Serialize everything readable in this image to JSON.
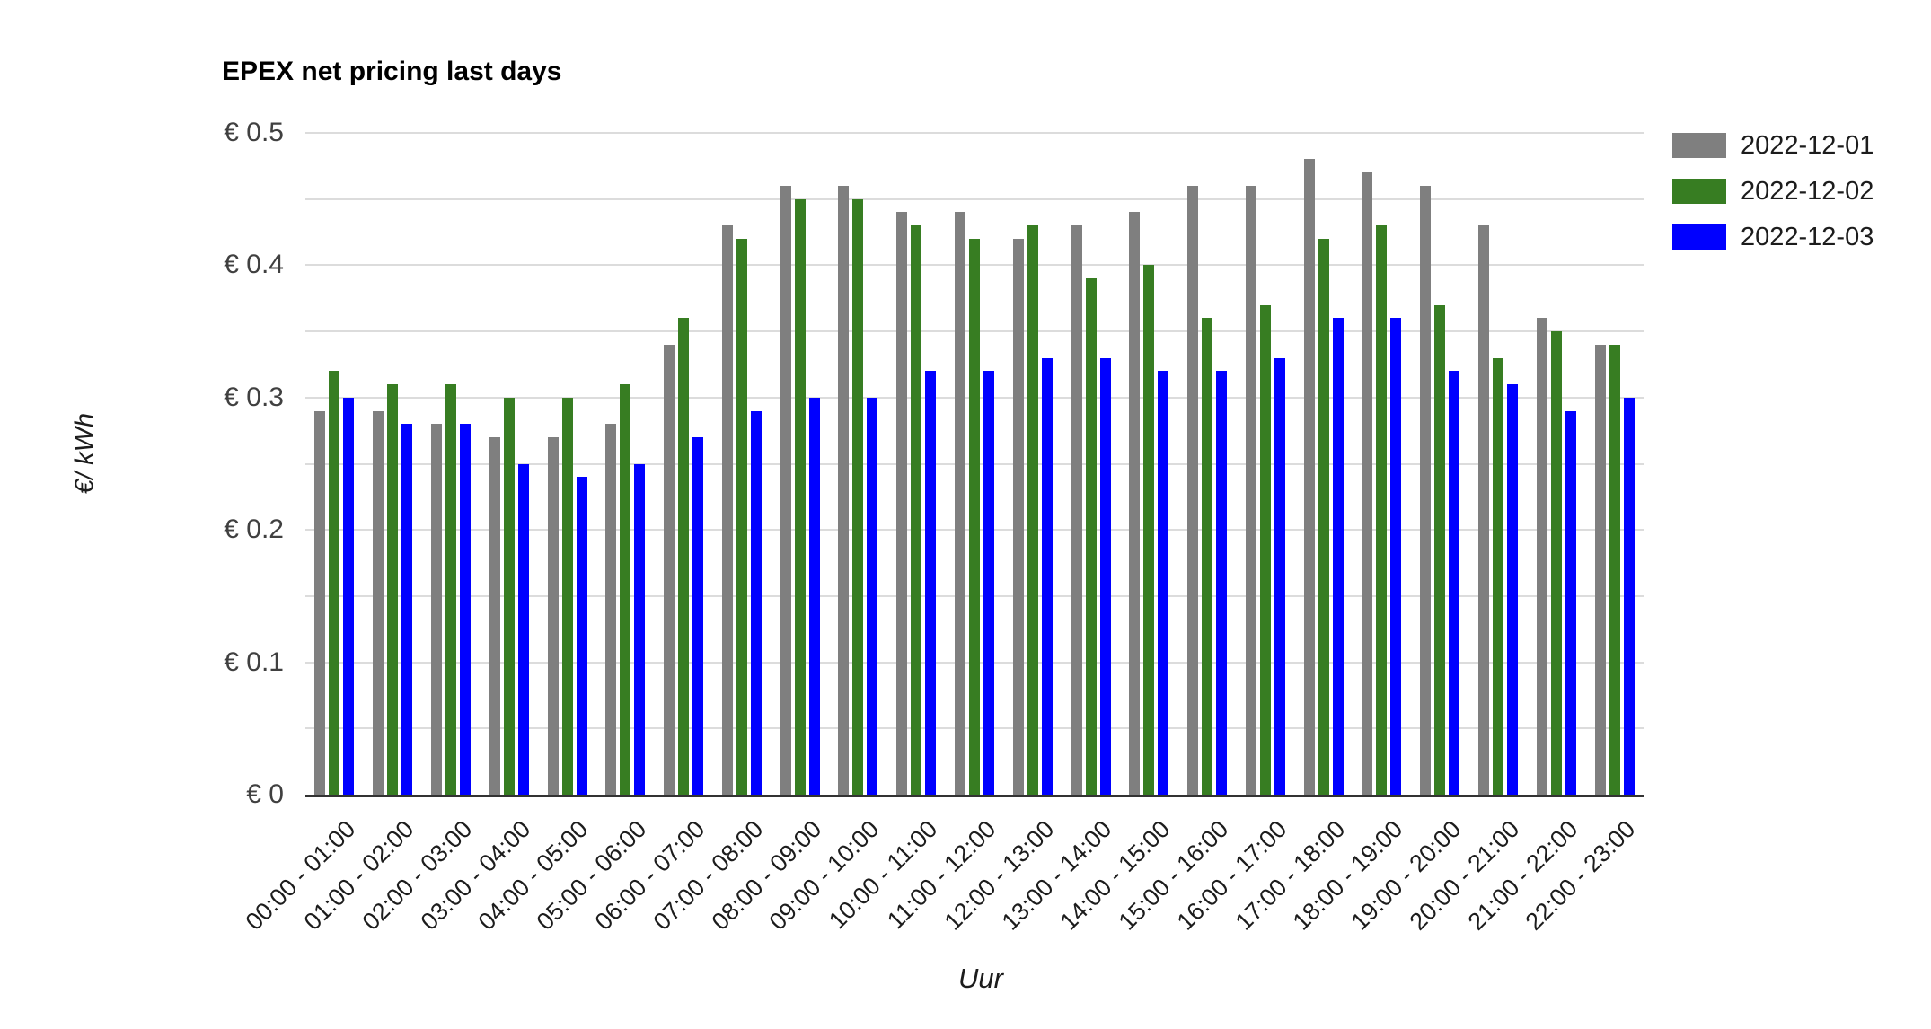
{
  "chart_data": {
    "type": "bar",
    "title": "EPEX net pricing last days",
    "xlabel": "Uur",
    "ylabel": "€/ kWh",
    "ylim": [
      0,
      0.5
    ],
    "grid": true,
    "minor_grid_step": 0.05,
    "legend_position": "top-right",
    "yticks": [
      {
        "value": 0,
        "label": "€ 0"
      },
      {
        "value": 0.1,
        "label": "€ 0.1"
      },
      {
        "value": 0.2,
        "label": "€ 0.2"
      },
      {
        "value": 0.3,
        "label": "€ 0.3"
      },
      {
        "value": 0.4,
        "label": "€ 0.4"
      },
      {
        "value": 0.5,
        "label": "€ 0.5"
      }
    ],
    "categories": [
      "00:00 - 01:00",
      "01:00 - 02:00",
      "02:00 - 03:00",
      "03:00 - 04:00",
      "04:00 - 05:00",
      "05:00 - 06:00",
      "06:00 - 07:00",
      "07:00 - 08:00",
      "08:00 - 09:00",
      "09:00 - 10:00",
      "10:00 - 11:00",
      "11:00 - 12:00",
      "12:00 - 13:00",
      "13:00 - 14:00",
      "14:00 - 15:00",
      "15:00 - 16:00",
      "16:00 - 17:00",
      "17:00 - 18:00",
      "18:00 - 19:00",
      "19:00 - 20:00",
      "20:00 - 21:00",
      "21:00 - 22:00",
      "22:00 - 23:00"
    ],
    "series": [
      {
        "name": "2022-12-01",
        "color": "#7f7f7f",
        "values": [
          0.29,
          0.29,
          0.28,
          0.27,
          0.27,
          0.28,
          0.34,
          0.43,
          0.46,
          0.46,
          0.44,
          0.44,
          0.42,
          0.43,
          0.44,
          0.46,
          0.46,
          0.48,
          0.47,
          0.46,
          0.43,
          0.36,
          0.34
        ]
      },
      {
        "name": "2022-12-02",
        "color": "#377d22",
        "values": [
          0.32,
          0.31,
          0.31,
          0.3,
          0.3,
          0.31,
          0.36,
          0.42,
          0.45,
          0.45,
          0.43,
          0.42,
          0.43,
          0.39,
          0.4,
          0.36,
          0.37,
          0.42,
          0.43,
          0.37,
          0.33,
          0.35,
          0.34
        ]
      },
      {
        "name": "2022-12-03",
        "color": "#0000ff",
        "values": [
          0.3,
          0.28,
          0.28,
          0.25,
          0.24,
          0.25,
          0.27,
          0.29,
          0.3,
          0.3,
          0.32,
          0.32,
          0.33,
          0.33,
          0.32,
          0.32,
          0.33,
          0.36,
          0.36,
          0.32,
          0.31,
          0.29,
          0.3
        ]
      }
    ]
  },
  "colors": {
    "gridline": "#dcdcdc",
    "axis_line": "#333333"
  }
}
